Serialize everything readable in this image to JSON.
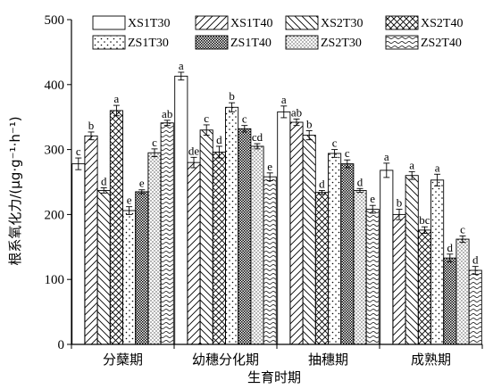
{
  "chart_data": {
    "type": "bar",
    "title": "",
    "xlabel": "生育时期",
    "ylabel": "根系氧化力/(μg·g⁻¹·h⁻¹)",
    "ylim": [
      0,
      500
    ],
    "yticks": [
      0,
      100,
      200,
      300,
      400,
      500
    ],
    "categories": [
      "分蘖期",
      "幼穗分化期",
      "抽穗期",
      "成熟期"
    ],
    "legend_position": "top",
    "series": [
      {
        "name": "XS1T30",
        "pattern": "blank",
        "values": [
          278,
          413,
          358,
          268
        ],
        "errors": [
          9,
          6,
          9,
          11
        ],
        "letters": [
          "c",
          "a",
          "a",
          "a"
        ]
      },
      {
        "name": "XS1T40",
        "pattern": "hatch-right",
        "values": [
          321,
          280,
          342,
          200
        ],
        "errors": [
          6,
          8,
          5,
          8
        ],
        "letters": [
          "b",
          "de",
          "ab",
          "b"
        ]
      },
      {
        "name": "XS2T30",
        "pattern": "hatch-left",
        "values": [
          237,
          330,
          322,
          260
        ],
        "errors": [
          4,
          8,
          7,
          6
        ],
        "letters": [
          "d",
          "c",
          "b",
          "a"
        ]
      },
      {
        "name": "XS2T40",
        "pattern": "crosshatch",
        "values": [
          360,
          296,
          234,
          176
        ],
        "errors": [
          8,
          9,
          3,
          5
        ],
        "letters": [
          "a",
          "d",
          "d",
          "bc"
        ]
      },
      {
        "name": "ZS1T30",
        "pattern": "sparse-dots",
        "values": [
          206,
          365,
          294,
          253
        ],
        "errors": [
          6,
          7,
          6,
          9
        ],
        "letters": [
          "e",
          "b",
          "c",
          "a"
        ]
      },
      {
        "name": "ZS1T40",
        "pattern": "checker",
        "values": [
          235,
          332,
          278,
          133
        ],
        "errors": [
          3,
          5,
          6,
          6
        ],
        "letters": [
          "e",
          "c",
          "c",
          "d"
        ]
      },
      {
        "name": "ZS2T30",
        "pattern": "dense-dots",
        "values": [
          295,
          305,
          237,
          162
        ],
        "errors": [
          6,
          4,
          3,
          5
        ],
        "letters": [
          "c",
          "cd",
          "d",
          "c"
        ]
      },
      {
        "name": "ZS2T40",
        "pattern": "wave",
        "values": [
          341,
          258,
          208,
          114
        ],
        "errors": [
          4,
          6,
          6,
          6
        ],
        "letters": [
          "ab",
          "e",
          "e",
          "d"
        ]
      }
    ]
  }
}
